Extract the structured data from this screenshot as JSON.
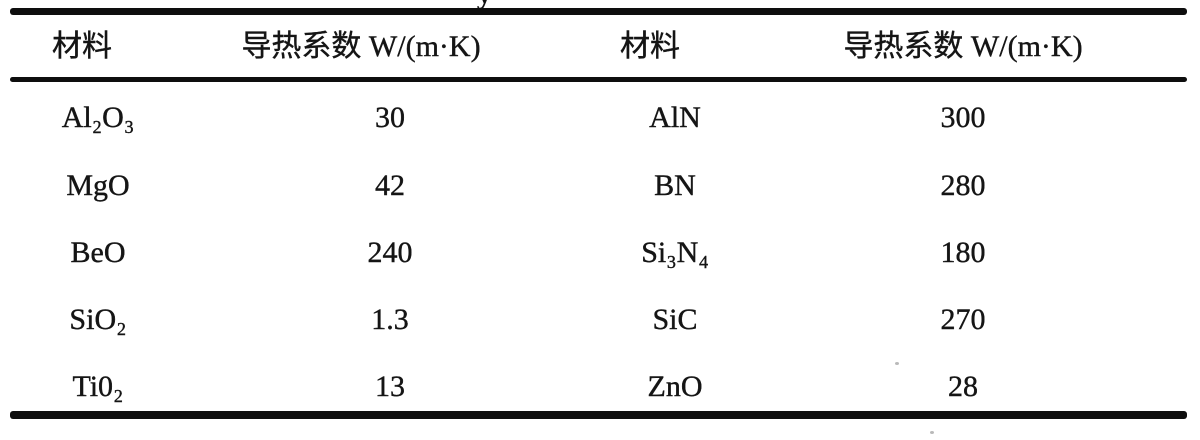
{
  "caption_fragment": "y",
  "table": {
    "headers": [
      "材料",
      "导热系数 W/(m·K)",
      "材料",
      "导热系数 W/(m·K)"
    ],
    "rows": [
      {
        "material_left": "Al₂O₃",
        "value_left": "30",
        "material_right": "AlN",
        "value_right": "300"
      },
      {
        "material_left": "MgO",
        "value_left": "42",
        "material_right": "BN",
        "value_right": "280"
      },
      {
        "material_left": "BeO",
        "value_left": "240",
        "material_right": "Si₃N₄",
        "value_right": "180"
      },
      {
        "material_left": "SiO₂",
        "value_left": "1.3",
        "material_right": "SiC",
        "value_right": "270"
      },
      {
        "material_left": "Ti0₂",
        "value_left": "13",
        "material_right": "ZnO",
        "value_right": "28"
      }
    ],
    "units_note": "W/(m·K)",
    "colors": {
      "text": "#151515",
      "rule": "#0e0e0e",
      "background": "#ffffff"
    }
  }
}
